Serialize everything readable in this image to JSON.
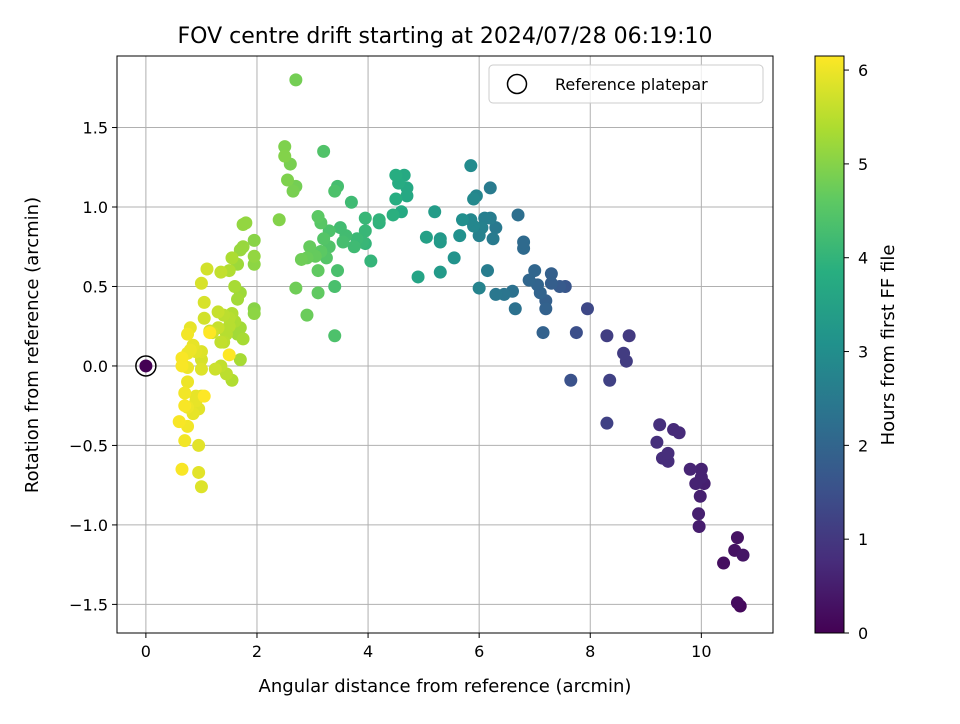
{
  "chart_data": {
    "type": "scatter",
    "title": "FOV centre drift starting at 2024/07/28 06:19:10",
    "xlabel": "Angular distance from reference (arcmin)",
    "ylabel": "Rotation from reference (arcmin)",
    "xlim": [
      -0.52,
      11.29
    ],
    "ylim": [
      -1.68,
      1.95
    ],
    "xticks": [
      0,
      2,
      4,
      6,
      8,
      10
    ],
    "yticks": [
      -1.5,
      -1.0,
      -0.5,
      0.0,
      0.5,
      1.0,
      1.5
    ],
    "grid": true,
    "legend": {
      "placement": "top-right",
      "entries": [
        "Reference platepar"
      ]
    },
    "reference_point": {
      "x": 0,
      "y": 0,
      "hours": 0
    },
    "colorbar": {
      "label": "Hours from first FF file",
      "range": [
        0,
        6.15
      ],
      "ticks": [
        0,
        1,
        2,
        3,
        4,
        5,
        6
      ],
      "colormap": "viridis"
    },
    "series": [
      {
        "points": [
          [
            10.7,
            -1.51,
            0.15
          ],
          [
            10.65,
            -1.49,
            0.2
          ],
          [
            10.4,
            -1.24,
            0.25
          ],
          [
            10.6,
            -1.16,
            0.3
          ],
          [
            10.75,
            -1.19,
            0.35
          ],
          [
            10.65,
            -1.08,
            0.3
          ],
          [
            10.05,
            -0.74,
            0.55
          ],
          [
            10.0,
            -0.7,
            0.6
          ],
          [
            9.95,
            -0.93,
            0.55
          ],
          [
            9.98,
            -0.82,
            0.55
          ],
          [
            9.96,
            -1.01,
            0.5
          ],
          [
            10.0,
            -0.65,
            0.6
          ],
          [
            9.9,
            -0.74,
            0.6
          ],
          [
            9.8,
            -0.65,
            0.65
          ],
          [
            9.5,
            -0.4,
            0.75
          ],
          [
            9.6,
            -0.42,
            0.75
          ],
          [
            9.3,
            -0.58,
            0.8
          ],
          [
            9.4,
            -0.6,
            0.8
          ],
          [
            9.2,
            -0.48,
            0.85
          ],
          [
            9.25,
            -0.37,
            0.85
          ],
          [
            9.4,
            -0.55,
            0.8
          ],
          [
            8.3,
            -0.36,
            1.2
          ],
          [
            8.35,
            -0.09,
            1.2
          ],
          [
            8.65,
            0.03,
            1.1
          ],
          [
            8.6,
            0.08,
            1.1
          ],
          [
            8.7,
            0.19,
            1.05
          ],
          [
            8.3,
            0.19,
            1.15
          ],
          [
            7.95,
            0.36,
            1.35
          ],
          [
            7.75,
            0.21,
            1.5
          ],
          [
            7.65,
            -0.09,
            1.55
          ],
          [
            7.55,
            0.5,
            1.65
          ],
          [
            7.45,
            0.5,
            1.75
          ],
          [
            7.3,
            0.52,
            1.85
          ],
          [
            7.2,
            0.41,
            1.9
          ],
          [
            7.3,
            0.58,
            1.9
          ],
          [
            7.15,
            0.21,
            1.95
          ],
          [
            7.2,
            0.36,
            1.95
          ],
          [
            7.1,
            0.46,
            2.0
          ],
          [
            7.05,
            0.51,
            2.0
          ],
          [
            7.0,
            0.6,
            2.05
          ],
          [
            6.9,
            0.54,
            2.05
          ],
          [
            6.8,
            0.74,
            2.15
          ],
          [
            6.8,
            0.78,
            2.15
          ],
          [
            6.7,
            0.95,
            2.25
          ],
          [
            6.65,
            0.36,
            2.3
          ],
          [
            6.6,
            0.47,
            2.3
          ],
          [
            6.45,
            0.45,
            2.4
          ],
          [
            6.3,
            0.45,
            2.45
          ],
          [
            6.3,
            0.87,
            2.5
          ],
          [
            6.25,
            0.8,
            2.55
          ],
          [
            6.2,
            1.12,
            2.55
          ],
          [
            6.2,
            0.93,
            2.6
          ],
          [
            6.15,
            0.6,
            2.6
          ],
          [
            6.1,
            0.93,
            2.65
          ],
          [
            6.05,
            0.87,
            2.7
          ],
          [
            6.0,
            0.82,
            2.7
          ],
          [
            6.0,
            0.49,
            2.75
          ],
          [
            5.95,
            1.07,
            2.8
          ],
          [
            5.9,
            0.88,
            2.85
          ],
          [
            5.85,
            0.92,
            2.85
          ],
          [
            5.9,
            1.05,
            2.9
          ],
          [
            5.85,
            1.26,
            2.95
          ],
          [
            5.7,
            0.92,
            3.05
          ],
          [
            5.65,
            0.82,
            3.1
          ],
          [
            5.55,
            0.68,
            3.15
          ],
          [
            5.3,
            0.8,
            3.3
          ],
          [
            5.3,
            0.59,
            3.35
          ],
          [
            5.3,
            0.78,
            3.35
          ],
          [
            5.2,
            0.97,
            3.4
          ],
          [
            5.05,
            0.81,
            3.5
          ],
          [
            4.9,
            0.56,
            3.6
          ],
          [
            4.7,
            1.07,
            3.7
          ],
          [
            4.7,
            1.12,
            3.7
          ],
          [
            4.65,
            1.2,
            3.75
          ],
          [
            4.6,
            0.97,
            3.75
          ],
          [
            4.55,
            1.15,
            3.8
          ],
          [
            4.5,
            1.2,
            3.85
          ],
          [
            4.5,
            1.05,
            3.85
          ],
          [
            4.45,
            0.95,
            3.9
          ],
          [
            4.2,
            0.9,
            3.95
          ],
          [
            4.2,
            0.92,
            4.0
          ],
          [
            4.05,
            0.66,
            4.05
          ],
          [
            3.95,
            0.77,
            4.05
          ],
          [
            3.95,
            0.85,
            4.1
          ],
          [
            3.9,
            0.78,
            4.1
          ],
          [
            3.95,
            0.93,
            4.1
          ],
          [
            3.8,
            0.8,
            4.15
          ],
          [
            3.75,
            0.75,
            4.2
          ],
          [
            3.7,
            1.03,
            4.2
          ],
          [
            3.6,
            0.82,
            4.25
          ],
          [
            3.5,
            0.87,
            4.25
          ],
          [
            3.55,
            0.78,
            4.3
          ],
          [
            3.45,
            1.13,
            4.3
          ],
          [
            3.45,
            0.6,
            4.35
          ],
          [
            3.4,
            0.5,
            4.35
          ],
          [
            3.4,
            0.19,
            4.4
          ],
          [
            3.4,
            1.1,
            4.4
          ],
          [
            3.3,
            0.85,
            4.4
          ],
          [
            3.3,
            0.75,
            4.45
          ],
          [
            3.2,
            1.35,
            4.45
          ],
          [
            3.25,
            0.68,
            4.5
          ],
          [
            3.2,
            0.8,
            4.5
          ],
          [
            3.15,
            0.9,
            4.55
          ],
          [
            3.1,
            0.94,
            4.6
          ],
          [
            3.15,
            0.72,
            4.6
          ],
          [
            3.1,
            0.6,
            4.65
          ],
          [
            3.1,
            0.46,
            4.65
          ],
          [
            3.05,
            0.69,
            4.7
          ],
          [
            2.95,
            0.75,
            4.7
          ],
          [
            2.9,
            0.68,
            4.75
          ],
          [
            2.9,
            0.32,
            4.75
          ],
          [
            2.8,
            0.67,
            4.8
          ],
          [
            2.7,
            0.49,
            4.8
          ],
          [
            2.7,
            1.8,
            4.85
          ],
          [
            2.7,
            1.13,
            4.85
          ],
          [
            2.65,
            1.1,
            4.9
          ],
          [
            2.6,
            1.27,
            4.9
          ],
          [
            2.55,
            1.17,
            4.95
          ],
          [
            2.5,
            1.38,
            4.95
          ],
          [
            2.5,
            1.32,
            5.0
          ],
          [
            2.4,
            0.92,
            5.0
          ],
          [
            1.95,
            0.79,
            5.05
          ],
          [
            1.95,
            0.36,
            5.05
          ],
          [
            1.95,
            0.33,
            5.1
          ],
          [
            1.95,
            0.64,
            5.1
          ],
          [
            1.95,
            0.69,
            5.15
          ],
          [
            1.75,
            0.89,
            5.15
          ],
          [
            1.8,
            0.9,
            5.15
          ],
          [
            1.75,
            0.75,
            5.2
          ],
          [
            1.7,
            0.73,
            5.2
          ],
          [
            1.65,
            0.64,
            5.25
          ],
          [
            1.7,
            0.46,
            5.25
          ],
          [
            1.65,
            0.42,
            5.3
          ],
          [
            1.7,
            0.24,
            5.3
          ],
          [
            1.65,
            0.2,
            5.3
          ],
          [
            1.75,
            0.17,
            5.35
          ],
          [
            1.7,
            0.04,
            5.35
          ],
          [
            1.6,
            0.5,
            5.35
          ],
          [
            1.6,
            0.28,
            5.4
          ],
          [
            1.55,
            0.68,
            5.4
          ],
          [
            1.55,
            0.33,
            5.45
          ],
          [
            1.55,
            -0.09,
            5.45
          ],
          [
            1.5,
            0.6,
            5.45
          ],
          [
            1.5,
            0.25,
            5.5
          ],
          [
            1.5,
            0.3,
            5.5
          ],
          [
            1.45,
            0.2,
            5.5
          ],
          [
            1.45,
            -0.05,
            5.55
          ],
          [
            1.4,
            0.32,
            5.55
          ],
          [
            1.4,
            0.15,
            5.55
          ],
          [
            1.35,
            0.15,
            5.6
          ],
          [
            1.35,
            0.59,
            5.6
          ],
          [
            1.35,
            0.0,
            5.6
          ],
          [
            1.3,
            0.34,
            5.65
          ],
          [
            1.3,
            0.24,
            5.65
          ],
          [
            1.25,
            -0.02,
            5.7
          ],
          [
            1.2,
            0.21,
            5.7
          ],
          [
            1.15,
            0.22,
            5.75
          ],
          [
            1.1,
            0.61,
            5.75
          ],
          [
            1.05,
            0.3,
            5.75
          ],
          [
            1.05,
            0.4,
            5.8
          ],
          [
            1.0,
            0.52,
            5.8
          ],
          [
            1.0,
            0.04,
            5.8
          ],
          [
            1.0,
            0.09,
            5.85
          ],
          [
            1.0,
            -0.02,
            5.85
          ],
          [
            1.0,
            -0.19,
            5.85
          ],
          [
            0.95,
            -0.5,
            5.9
          ],
          [
            0.95,
            -0.67,
            5.9
          ],
          [
            1.0,
            -0.76,
            5.85
          ],
          [
            0.95,
            -0.27,
            5.9
          ],
          [
            0.9,
            0.09,
            5.9
          ],
          [
            0.9,
            -0.19,
            5.95
          ],
          [
            0.9,
            -0.22,
            5.95
          ],
          [
            0.85,
            -0.3,
            5.95
          ],
          [
            0.85,
            0.13,
            5.95
          ],
          [
            0.8,
            0.24,
            5.95
          ],
          [
            0.8,
            0.1,
            6.0
          ],
          [
            0.75,
            0.08,
            6.0
          ],
          [
            0.75,
            -0.01,
            6.0
          ],
          [
            0.75,
            -0.1,
            6.0
          ],
          [
            0.75,
            -0.26,
            6.0
          ],
          [
            0.75,
            -0.38,
            6.05
          ],
          [
            0.75,
            0.2,
            6.05
          ],
          [
            0.7,
            -0.17,
            6.05
          ],
          [
            0.7,
            -0.47,
            6.05
          ],
          [
            0.7,
            -0.25,
            6.1
          ],
          [
            0.65,
            -0.65,
            6.1
          ],
          [
            0.65,
            0.05,
            6.1
          ],
          [
            0.6,
            -0.35,
            6.1
          ],
          [
            0.65,
            0.0,
            6.1
          ],
          [
            1.5,
            0.07,
            6.15
          ],
          [
            1.15,
            0.21,
            6.15
          ],
          [
            1.05,
            -0.19,
            6.15
          ]
        ]
      }
    ]
  }
}
